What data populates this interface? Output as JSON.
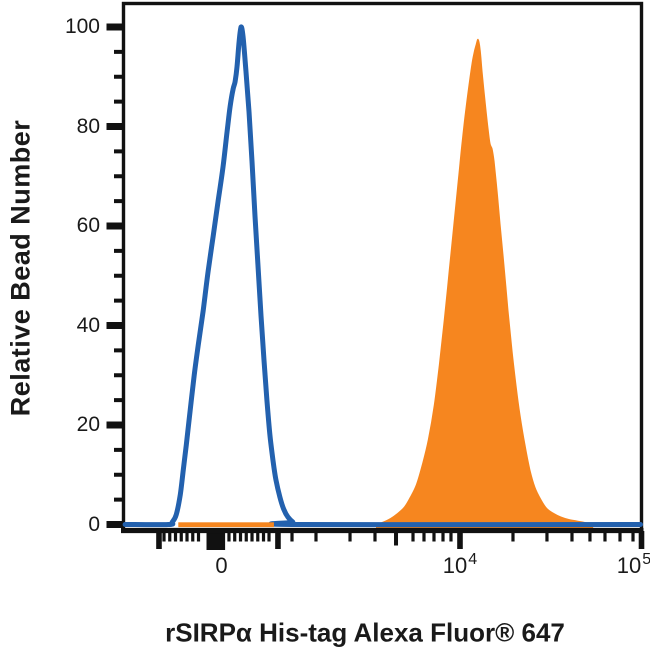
{
  "figure": {
    "background": "#ffffff"
  },
  "colors": {
    "blue": "#2361AE",
    "orange": "#F6861F",
    "axis": "#111111",
    "text": "#1a1a1a"
  },
  "chart_data": {
    "type": "area",
    "subtype": "flow-cytometry-histogram-overlay",
    "title": "",
    "xlabel": "rSIRPα His-tag Alexa Fluor® 647",
    "ylabel": "Relative Bead Number",
    "x_scale": "biexponential (linear around 0, log decades up to 1e5)",
    "ylim": [
      0,
      100
    ],
    "y_major_ticks": [
      0,
      20,
      40,
      60,
      80,
      100
    ],
    "y_minor_step": 5,
    "x_tick_labels": [
      {
        "text": "0",
        "frac": 0.1892
      },
      {
        "base": "10",
        "exp": "4",
        "frac": 0.6496
      },
      {
        "base": "10",
        "exp": "5",
        "frac": 0.9855
      }
    ],
    "x_ticks": {
      "tall": [
        0.0685,
        0.2982,
        0.6496,
        1.0
      ],
      "zero_wide": 0.1782,
      "medium": [
        0.5261
      ],
      "minor": [
        0.0782,
        0.0893,
        0.1004,
        0.1115,
        0.1226,
        0.1337,
        0.1448,
        0.2036,
        0.2147,
        0.2259,
        0.237,
        0.2481,
        0.2592,
        0.2703,
        0.2809,
        0.3253,
        0.3716,
        0.4373,
        0.4855,
        0.5589,
        0.5801,
        0.5994,
        0.6168,
        0.6322,
        0.7519,
        0.8175,
        0.8658,
        0.9005,
        0.9295,
        0.9585,
        0.9836
      ]
    },
    "series": [
      {
        "name": "orange_filled_histogram",
        "style": "filled",
        "color": "#F6861F",
        "peak_value": 97.5,
        "peak_x_frac": 0.6846,
        "points": [
          [
            0.4885,
            0
          ],
          [
            0.5019,
            0.5
          ],
          [
            0.5154,
            1.2
          ],
          [
            0.5288,
            2.2
          ],
          [
            0.5423,
            3.5
          ],
          [
            0.5538,
            5.5
          ],
          [
            0.5654,
            8
          ],
          [
            0.5769,
            12
          ],
          [
            0.5885,
            17
          ],
          [
            0.6,
            24
          ],
          [
            0.6096,
            32
          ],
          [
            0.6192,
            41
          ],
          [
            0.6288,
            51
          ],
          [
            0.6385,
            61
          ],
          [
            0.6462,
            69
          ],
          [
            0.6538,
            77
          ],
          [
            0.6615,
            84
          ],
          [
            0.6692,
            90
          ],
          [
            0.675,
            94
          ],
          [
            0.6808,
            96.5
          ],
          [
            0.6846,
            97.5
          ],
          [
            0.6885,
            95.5
          ],
          [
            0.6923,
            91
          ],
          [
            0.6981,
            85
          ],
          [
            0.7038,
            79.5
          ],
          [
            0.7077,
            76.5
          ],
          [
            0.7115,
            75.5
          ],
          [
            0.7154,
            73
          ],
          [
            0.7212,
            67
          ],
          [
            0.7269,
            60.5
          ],
          [
            0.7346,
            52
          ],
          [
            0.7423,
            43
          ],
          [
            0.75,
            35
          ],
          [
            0.7577,
            28
          ],
          [
            0.7654,
            22
          ],
          [
            0.775,
            16
          ],
          [
            0.7846,
            11
          ],
          [
            0.7942,
            7.5
          ],
          [
            0.8058,
            5
          ],
          [
            0.8173,
            3.2
          ],
          [
            0.8308,
            2.2
          ],
          [
            0.8442,
            1.5
          ],
          [
            0.8596,
            1
          ],
          [
            0.875,
            0.7
          ],
          [
            0.8904,
            0.4
          ],
          [
            0.9058,
            0
          ]
        ]
      },
      {
        "name": "blue_open_histogram",
        "style": "open-line",
        "color": "#2361AE",
        "peak_value": 100,
        "peak_x_frac": 0.2269,
        "points": [
          [
            0.003,
            0
          ],
          [
            0.0865,
            0
          ],
          [
            0.0942,
            0.5
          ],
          [
            0.1019,
            2
          ],
          [
            0.1096,
            6
          ],
          [
            0.1154,
            11
          ],
          [
            0.1212,
            16
          ],
          [
            0.1288,
            23
          ],
          [
            0.1365,
            30
          ],
          [
            0.1442,
            36
          ],
          [
            0.1538,
            43
          ],
          [
            0.1635,
            51
          ],
          [
            0.1731,
            58
          ],
          [
            0.1827,
            65
          ],
          [
            0.1923,
            72
          ],
          [
            0.2,
            79
          ],
          [
            0.2058,
            84
          ],
          [
            0.2115,
            87.5
          ],
          [
            0.2154,
            89
          ],
          [
            0.2192,
            92
          ],
          [
            0.2231,
            97
          ],
          [
            0.2269,
            100
          ],
          [
            0.2308,
            98
          ],
          [
            0.2365,
            91
          ],
          [
            0.2423,
            83
          ],
          [
            0.2481,
            73
          ],
          [
            0.2538,
            62
          ],
          [
            0.2596,
            52
          ],
          [
            0.2654,
            42
          ],
          [
            0.2712,
            33
          ],
          [
            0.2769,
            25
          ],
          [
            0.2827,
            18
          ],
          [
            0.2885,
            13
          ],
          [
            0.2942,
            9
          ],
          [
            0.3019,
            5.5
          ],
          [
            0.3096,
            3
          ],
          [
            0.3173,
            1.5
          ],
          [
            0.3269,
            0.5
          ],
          [
            0.3365,
            0
          ],
          [
            0.998,
            0
          ]
        ]
      }
    ],
    "zero_baseline_strip": {
      "color": "#F6861F",
      "x1_frac": 0.1058,
      "x2_frac": 0.2904
    }
  }
}
